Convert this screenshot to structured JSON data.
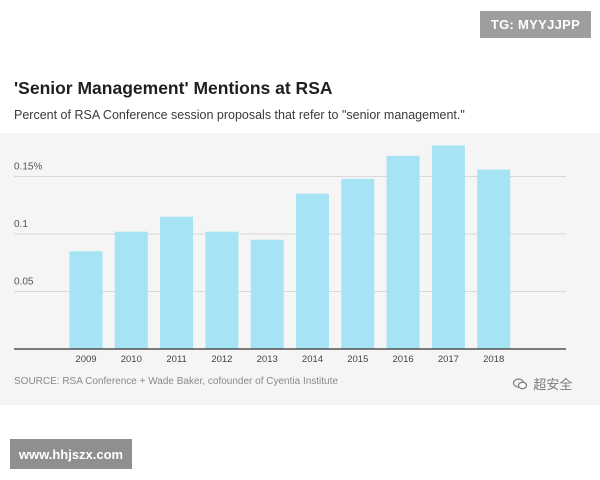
{
  "overlay": {
    "top_tag": "TG: MYYJJPP",
    "bottom_tag": "www.hhjszx.com",
    "logo_text": "超安全"
  },
  "source_text": "SOURCE: RSA Conference + Wade Baker, cofounder of Cyentia Institute",
  "colors": {
    "bar": "#a6e3f5",
    "grid": "#d8d8d8",
    "axis": "#333333",
    "plot_background": "#f5f5f5"
  },
  "icons": {
    "logo": "wechat-bubble-icon"
  },
  "chart_data": {
    "type": "bar",
    "title": "'Senior Management' Mentions at RSA",
    "subtitle": "Percent of RSA Conference session proposals that refer to \"senior management.\"",
    "xlabel": "",
    "ylabel": "",
    "categories": [
      "2009",
      "2010",
      "2011",
      "2012",
      "2013",
      "2014",
      "2015",
      "2016",
      "2017",
      "2018"
    ],
    "values": [
      0.085,
      0.102,
      0.115,
      0.102,
      0.095,
      0.135,
      0.148,
      0.168,
      0.177,
      0.156
    ],
    "ylim": [
      0,
      0.18
    ],
    "yticks": [
      0.05,
      0.1,
      0.15
    ],
    "ytick_labels": [
      "0.05",
      "0.1",
      "0.15%"
    ],
    "grid": true,
    "legend": "none"
  }
}
